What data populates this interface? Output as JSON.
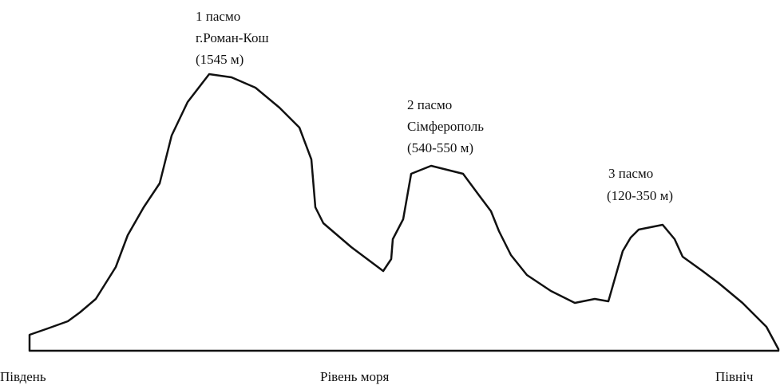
{
  "ranges": [
    {
      "name": "1 пасмо",
      "place": "г.Роман-Кош",
      "height": "(1545 м)"
    },
    {
      "name": "2 пасмо",
      "place": "Сімферополь",
      "height": "(540-550 м)"
    },
    {
      "name": "3 пасмо",
      "height": "(120-350 м)"
    }
  ],
  "baseline": {
    "left": "Південь",
    "center": "Рівень моря",
    "right": "Північ"
  }
}
